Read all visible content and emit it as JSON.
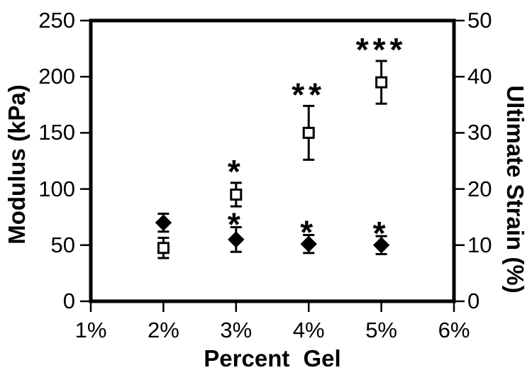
{
  "chart_data": {
    "type": "scatter",
    "title": "",
    "xlabel": "Percent Gel",
    "x_tick_labels": [
      "1%",
      "2%",
      "3%",
      "4%",
      "5%",
      "6%"
    ],
    "x_tick_values": [
      1,
      2,
      3,
      4,
      5,
      6
    ],
    "xlim": [
      1,
      6
    ],
    "axes": {
      "left": {
        "label": "Modulus (kPa)",
        "ticks": [
          0,
          50,
          100,
          150,
          200,
          250
        ],
        "lim": [
          0,
          250
        ]
      },
      "right": {
        "label": "Ultimate Strain (%)",
        "ticks": [
          0,
          10,
          20,
          30,
          40,
          50
        ],
        "lim": [
          0,
          50
        ]
      }
    },
    "series": [
      {
        "name": "Modulus",
        "axis": "left",
        "marker": "filled-diamond",
        "x": [
          2,
          3,
          4,
          5
        ],
        "y": [
          70,
          55,
          51,
          50
        ],
        "yerr": [
          8,
          11,
          8,
          8
        ]
      },
      {
        "name": "Ultimate Strain",
        "axis": "right",
        "marker": "open-square",
        "x": [
          2,
          3,
          4,
          5
        ],
        "y": [
          9.5,
          19,
          30,
          39
        ],
        "yerr": [
          1.8,
          2.1,
          4.8,
          3.8
        ]
      }
    ],
    "annotations": [
      {
        "series": 1,
        "x": 3,
        "text": "*"
      },
      {
        "series": 1,
        "x": 4,
        "text": "**"
      },
      {
        "series": 1,
        "x": 5,
        "text": "***"
      },
      {
        "series": 0,
        "x": 3,
        "text": "*"
      },
      {
        "series": 0,
        "x": 4,
        "text": "*"
      },
      {
        "series": 0,
        "x": 5,
        "text": "*"
      }
    ],
    "legend": "none",
    "grid": false,
    "colors": {
      "foreground": "#000000",
      "background": "#ffffff"
    }
  }
}
